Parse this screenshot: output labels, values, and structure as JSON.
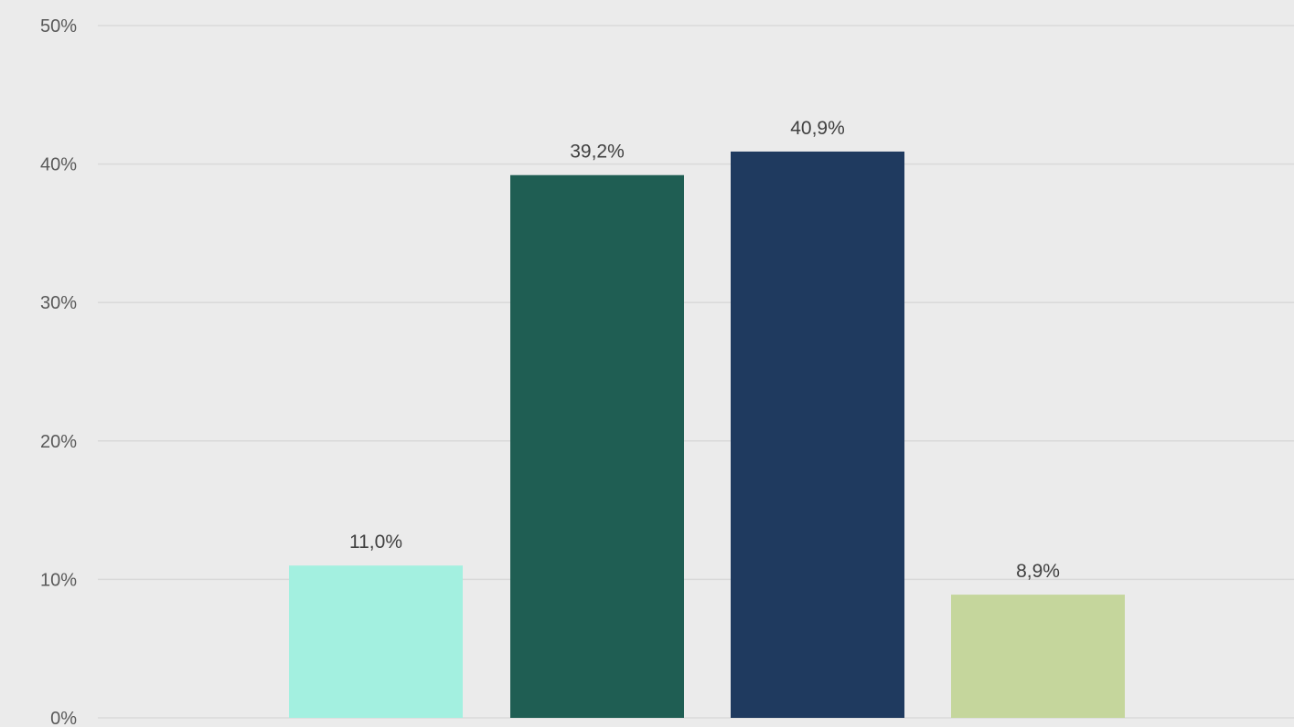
{
  "chart_data": {
    "type": "bar",
    "categories": [
      "",
      "",
      "",
      ""
    ],
    "values": [
      11.0,
      39.2,
      40.9,
      8.9
    ],
    "value_labels": [
      "11,0%",
      "39,2%",
      "40,9%",
      "8,9%"
    ],
    "colors": [
      "#a3f0e0",
      "#1f5e53",
      "#1f3a5f",
      "#c5d69c"
    ],
    "ylim": [
      0,
      50
    ],
    "yticks": [
      0,
      10,
      20,
      30,
      40,
      50
    ],
    "ytick_labels": [
      "0%",
      "10%",
      "20%",
      "30%",
      "40%",
      "50%"
    ],
    "title": "",
    "xlabel": "",
    "ylabel": "",
    "grid": true,
    "legend": "none",
    "background": "#ebebeb",
    "gridline_color": "#d9d9d9"
  }
}
